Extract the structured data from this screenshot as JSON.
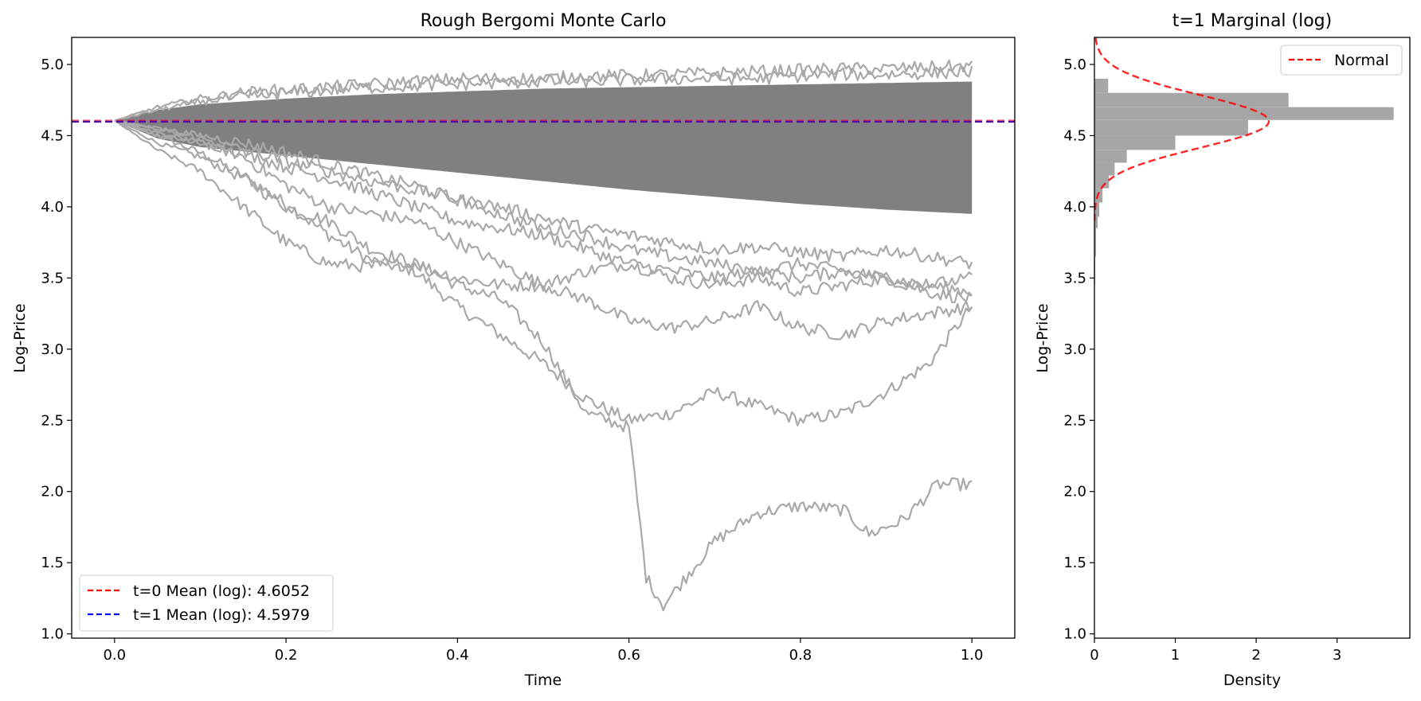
{
  "chart_data": [
    {
      "type": "line",
      "title": "Rough Bergomi Monte Carlo",
      "xlabel": "Time",
      "ylabel": "Log-Price",
      "xlim": [
        -0.05,
        1.05
      ],
      "ylim": [
        0.97,
        5.19
      ],
      "xticks": [
        0.0,
        0.2,
        0.4,
        0.6,
        0.8,
        1.0
      ],
      "xtick_labels": [
        "0.0",
        "0.2",
        "0.4",
        "0.6",
        "0.8",
        "1.0"
      ],
      "yticks": [
        1.0,
        1.5,
        2.0,
        2.5,
        3.0,
        3.5,
        4.0,
        4.5,
        5.0
      ],
      "ytick_labels": [
        "1.0",
        "1.5",
        "2.0",
        "2.5",
        "3.0",
        "3.5",
        "4.0",
        "4.5",
        "5.0"
      ],
      "grid": false,
      "legend_position": "lower-left",
      "path_color": "#808080",
      "band": {
        "name": "simulated paths",
        "x": [
          0.0,
          0.05,
          0.1,
          0.2,
          0.3,
          0.4,
          0.5,
          0.6,
          0.7,
          0.8,
          0.9,
          1.0
        ],
        "upper": [
          4.605,
          4.68,
          4.72,
          4.76,
          4.79,
          4.81,
          4.83,
          4.84,
          4.85,
          4.86,
          4.87,
          4.88
        ],
        "lower": [
          4.605,
          4.48,
          4.42,
          4.36,
          4.3,
          4.24,
          4.18,
          4.12,
          4.07,
          4.02,
          3.98,
          3.95
        ]
      },
      "paths": [
        {
          "x": [
            0.0,
            0.05,
            0.1,
            0.15,
            0.2,
            0.25,
            0.3,
            0.35,
            0.4,
            0.45,
            0.5,
            0.55,
            0.6,
            0.65,
            0.7,
            0.75,
            0.8,
            0.85,
            0.9,
            0.95,
            1.0
          ],
          "y": [
            4.605,
            4.5,
            4.38,
            4.22,
            4.02,
            3.8,
            3.62,
            3.55,
            3.3,
            3.1,
            2.9,
            2.65,
            2.5,
            2.55,
            2.7,
            2.6,
            2.5,
            2.55,
            2.7,
            2.9,
            3.3
          ]
        },
        {
          "x": [
            0.0,
            0.05,
            0.1,
            0.15,
            0.2,
            0.25,
            0.3,
            0.35,
            0.4,
            0.45,
            0.5,
            0.55,
            0.6,
            0.62,
            0.64,
            0.66,
            0.7,
            0.75,
            0.8,
            0.85,
            0.88,
            0.92,
            0.96,
            1.0
          ],
          "y": [
            4.605,
            4.45,
            4.35,
            4.2,
            4.0,
            3.9,
            3.7,
            3.6,
            3.45,
            3.35,
            3.05,
            2.55,
            2.45,
            1.4,
            1.2,
            1.35,
            1.65,
            1.85,
            1.9,
            1.87,
            1.7,
            1.8,
            2.05,
            2.05
          ]
        },
        {
          "x": [
            0.0,
            0.05,
            0.1,
            0.15,
            0.2,
            0.25,
            0.3,
            0.35,
            0.4,
            0.45,
            0.5,
            0.55,
            0.6,
            0.65,
            0.7,
            0.75,
            0.8,
            0.85,
            0.9,
            0.95,
            1.0
          ],
          "y": [
            4.605,
            4.4,
            4.25,
            4.0,
            3.75,
            3.6,
            3.58,
            3.6,
            3.5,
            3.45,
            3.45,
            3.55,
            3.6,
            3.5,
            3.45,
            3.5,
            3.4,
            3.45,
            3.5,
            3.4,
            3.35
          ]
        },
        {
          "x": [
            0.0,
            0.05,
            0.1,
            0.15,
            0.2,
            0.25,
            0.3,
            0.35,
            0.4,
            0.45,
            0.5,
            0.55,
            0.6,
            0.65,
            0.7,
            0.75,
            0.8,
            0.85,
            0.9,
            0.95,
            1.0
          ],
          "y": [
            4.605,
            4.5,
            4.45,
            4.35,
            4.15,
            4.0,
            3.95,
            3.9,
            3.75,
            3.6,
            3.45,
            3.35,
            3.2,
            3.15,
            3.2,
            3.3,
            3.15,
            3.1,
            3.2,
            3.25,
            3.3
          ]
        },
        {
          "x": [
            0.0,
            0.05,
            0.1,
            0.15,
            0.2,
            0.25,
            0.3,
            0.35,
            0.4,
            0.45,
            0.5,
            0.55,
            0.6,
            0.65,
            0.7,
            0.75,
            0.8,
            0.85,
            0.9,
            0.95,
            1.0
          ],
          "y": [
            4.605,
            4.52,
            4.45,
            4.38,
            4.28,
            4.2,
            4.1,
            4.0,
            3.9,
            3.85,
            3.8,
            3.7,
            3.6,
            3.55,
            3.5,
            3.55,
            3.6,
            3.55,
            3.5,
            3.45,
            3.4
          ]
        },
        {
          "x": [
            0.0,
            0.05,
            0.1,
            0.15,
            0.2,
            0.25,
            0.3,
            0.35,
            0.4,
            0.45,
            0.5,
            0.55,
            0.6,
            0.65,
            0.7,
            0.75,
            0.8,
            0.85,
            0.9,
            0.95,
            1.0
          ],
          "y": [
            4.605,
            4.55,
            4.5,
            4.45,
            4.38,
            4.3,
            4.22,
            4.15,
            4.05,
            3.95,
            3.85,
            3.8,
            3.7,
            3.65,
            3.6,
            3.55,
            3.5,
            3.55,
            3.5,
            3.45,
            3.5
          ]
        },
        {
          "x": [
            0.0,
            0.05,
            0.1,
            0.15,
            0.2,
            0.25,
            0.3,
            0.35,
            0.4,
            0.45,
            0.5,
            0.55,
            0.6,
            0.65,
            0.7,
            0.75,
            0.8,
            0.85,
            0.9,
            0.95,
            1.0
          ],
          "y": [
            4.605,
            4.55,
            4.48,
            4.4,
            4.32,
            4.25,
            4.18,
            4.12,
            4.05,
            4.0,
            3.92,
            3.85,
            3.8,
            3.75,
            3.7,
            3.72,
            3.68,
            3.65,
            3.7,
            3.65,
            3.6
          ]
        },
        {
          "x": [
            0.0,
            0.05,
            0.1,
            0.15,
            0.2,
            0.25,
            0.3,
            0.35,
            0.4,
            0.45,
            0.5,
            0.55,
            0.6,
            0.65,
            0.7,
            0.75,
            0.8,
            0.85,
            0.9,
            0.95,
            1.0
          ],
          "y": [
            4.605,
            4.7,
            4.76,
            4.8,
            4.82,
            4.84,
            4.86,
            4.88,
            4.9,
            4.9,
            4.9,
            4.92,
            4.92,
            4.93,
            4.94,
            4.95,
            4.96,
            4.97,
            4.97,
            4.98,
            4.99
          ]
        },
        {
          "x": [
            0.0,
            0.05,
            0.1,
            0.15,
            0.2,
            0.25,
            0.3,
            0.35,
            0.4,
            0.45,
            0.5,
            0.55,
            0.6,
            0.65,
            0.7,
            0.75,
            0.8,
            0.85,
            0.9,
            0.95,
            1.0
          ],
          "y": [
            4.605,
            4.68,
            4.74,
            4.78,
            4.8,
            4.82,
            4.84,
            4.85,
            4.86,
            4.87,
            4.88,
            4.88,
            4.89,
            4.9,
            4.9,
            4.9,
            4.92,
            4.93,
            4.93,
            4.94,
            4.95
          ]
        }
      ],
      "hlines": [
        {
          "name": "t=0 Mean (log): 4.6052",
          "y": 4.6052,
          "color": "#ff0000"
        },
        {
          "name": "t=1 Mean (log): 4.5979",
          "y": 4.5979,
          "color": "#0000ff"
        }
      ],
      "visible_mean_line_color": "#4b0fa8"
    },
    {
      "type": "bar",
      "orientation": "horizontal",
      "title": "t=1 Marginal (log)",
      "xlabel": "Density",
      "ylabel": "Log-Price",
      "xlim": [
        0,
        3.9
      ],
      "ylim": [
        0.97,
        5.19
      ],
      "xticks": [
        0,
        1,
        2,
        3
      ],
      "xtick_labels": [
        "0",
        "1",
        "2",
        "3"
      ],
      "yticks": [
        1.0,
        1.5,
        2.0,
        2.5,
        3.0,
        3.5,
        4.0,
        4.5,
        5.0
      ],
      "ytick_labels": [
        "1.0",
        "1.5",
        "2.0",
        "2.5",
        "3.0",
        "3.5",
        "4.0",
        "4.5",
        "5.0"
      ],
      "grid": false,
      "legend_position": "top-right",
      "bar_color": "#a6a6a6",
      "bins": [
        {
          "y0": 3.45,
          "y1": 3.55,
          "density": 0.01
        },
        {
          "y0": 3.55,
          "y1": 3.65,
          "density": 0.01
        },
        {
          "y0": 3.65,
          "y1": 3.75,
          "density": 0.02
        },
        {
          "y0": 3.75,
          "y1": 3.85,
          "density": 0.02
        },
        {
          "y0": 3.85,
          "y1": 3.93,
          "density": 0.04
        },
        {
          "y0": 3.93,
          "y1": 4.03,
          "density": 0.06
        },
        {
          "y0": 4.03,
          "y1": 4.13,
          "density": 0.1
        },
        {
          "y0": 4.13,
          "y1": 4.22,
          "density": 0.18
        },
        {
          "y0": 4.22,
          "y1": 4.31,
          "density": 0.25
        },
        {
          "y0": 4.31,
          "y1": 4.4,
          "density": 0.4
        },
        {
          "y0": 4.4,
          "y1": 4.5,
          "density": 1.0
        },
        {
          "y0": 4.5,
          "y1": 4.61,
          "density": 1.9
        },
        {
          "y0": 4.61,
          "y1": 4.7,
          "density": 3.7
        },
        {
          "y0": 4.7,
          "y1": 4.8,
          "density": 2.4
        },
        {
          "y0": 4.8,
          "y1": 4.9,
          "density": 0.17
        }
      ],
      "normal_fit": {
        "name": "Normal",
        "mean": 4.6,
        "std": 0.185,
        "color": "#ff0000"
      }
    }
  ]
}
